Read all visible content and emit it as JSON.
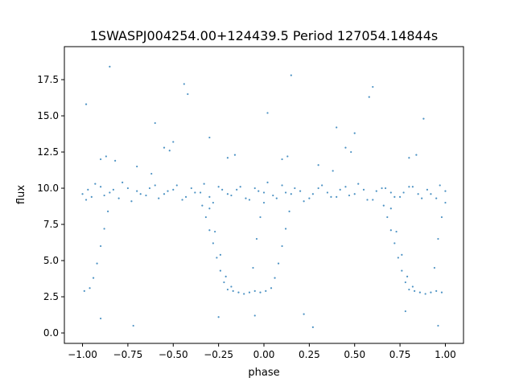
{
  "chart_data": {
    "type": "scatter",
    "title": "1SWASPJ004254.00+124439.5 Period 127054.14844s",
    "xlabel": "phase",
    "ylabel": "flux",
    "xlim": [
      -1.1,
      1.1
    ],
    "ylim": [
      -0.72,
      19.78
    ],
    "xticks": [
      -1.0,
      -0.75,
      -0.5,
      -0.25,
      0.0,
      0.25,
      0.5,
      0.75,
      1.0
    ],
    "xtick_labels": [
      "−1.00",
      "−0.75",
      "−0.50",
      "−0.25",
      "0.00",
      "0.25",
      "0.50",
      "0.75",
      "1.00"
    ],
    "yticks": [
      0.0,
      2.5,
      5.0,
      7.5,
      10.0,
      12.5,
      15.0,
      17.5
    ],
    "ytick_labels": [
      "0.0",
      "2.5",
      "5.0",
      "7.5",
      "10.0",
      "12.5",
      "15.0",
      "17.5"
    ],
    "grid": false,
    "marker_color": "#1f77b4",
    "series": [
      {
        "x": [
          -1.0,
          -0.97,
          -0.95,
          -0.9,
          -0.85,
          -0.8,
          -0.75,
          -0.7,
          -0.65,
          -0.6,
          -0.55,
          -0.5,
          -0.45,
          -0.4,
          -0.35,
          -0.3,
          -0.25,
          -0.2,
          -0.15,
          -0.1,
          -0.05,
          0.0,
          0.05,
          0.1,
          0.15,
          0.2,
          0.25,
          0.3,
          0.35,
          0.4,
          0.45,
          0.5,
          0.55,
          0.6,
          0.65,
          0.7,
          0.75,
          0.8,
          0.85,
          0.9,
          0.95,
          1.0,
          -0.98,
          -0.93,
          -0.88,
          -0.83,
          -0.78,
          -0.73,
          -0.68,
          -0.63,
          -0.58,
          -0.53,
          -0.48,
          -0.43,
          -0.38,
          -0.33,
          -0.28,
          -0.23,
          -0.18,
          -0.13,
          -0.08,
          -0.03,
          0.02,
          0.07,
          0.12,
          0.17,
          0.22,
          0.27,
          0.32,
          0.37,
          0.42,
          0.47,
          0.52,
          0.57,
          0.62,
          0.67,
          0.72,
          0.77,
          0.82,
          0.87,
          0.92,
          0.97,
          -0.34,
          -0.32,
          -0.3,
          -0.28,
          -0.26,
          -0.24,
          -0.22,
          -0.2,
          -0.17,
          -0.14,
          -0.11,
          -0.08,
          -0.05,
          -0.02,
          0.01,
          0.04,
          0.06,
          0.08,
          0.1,
          0.12,
          0.14,
          -0.3,
          -0.27,
          -0.24,
          -0.21,
          -0.18,
          -0.06,
          -0.04,
          -0.02,
          0.0,
          0.66,
          0.68,
          0.7,
          0.72,
          0.74,
          0.76,
          0.78,
          0.8,
          0.83,
          0.86,
          0.89,
          0.92,
          0.95,
          0.98,
          -0.99,
          -0.96,
          -0.94,
          -0.92,
          -0.9,
          -0.88,
          -0.86,
          0.7,
          0.73,
          0.76,
          0.79,
          0.82,
          0.94,
          0.96,
          0.98,
          1.0,
          -0.9,
          -0.87,
          -0.82,
          -0.2,
          -0.16,
          0.1,
          0.13,
          0.8,
          0.84,
          -0.55,
          -0.52,
          0.45,
          0.48,
          -0.7,
          -0.62,
          0.3,
          0.38,
          -0.42,
          -0.44,
          0.58,
          0.6,
          -0.85,
          0.15,
          -0.6,
          0.4,
          -0.98,
          0.02,
          0.88,
          -0.3,
          -0.5,
          0.5,
          -0.72,
          0.27,
          0.96,
          -0.05,
          -0.9,
          0.78,
          -0.25,
          0.22
        ],
        "y": [
          9.6,
          9.9,
          9.4,
          10.1,
          9.7,
          9.3,
          10.0,
          9.8,
          9.5,
          10.2,
          9.6,
          9.9,
          9.2,
          10.0,
          9.7,
          9.4,
          10.1,
          9.6,
          9.9,
          9.3,
          10.0,
          9.7,
          9.5,
          10.2,
          9.6,
          9.8,
          9.3,
          10.0,
          9.7,
          9.4,
          10.1,
          9.6,
          9.9,
          9.2,
          10.0,
          9.7,
          9.4,
          10.1,
          9.6,
          9.9,
          9.3,
          9.8,
          9.2,
          10.3,
          9.5,
          9.9,
          10.4,
          9.1,
          9.6,
          10.0,
          9.3,
          9.8,
          10.2,
          9.4,
          9.7,
          10.3,
          9.0,
          9.9,
          9.5,
          10.1,
          9.2,
          9.8,
          10.4,
          9.3,
          9.7,
          10.0,
          9.1,
          9.6,
          10.2,
          9.4,
          9.9,
          9.5,
          10.3,
          9.2,
          9.8,
          10.0,
          9.4,
          9.7,
          10.1,
          9.3,
          9.6,
          10.2,
          8.8,
          8.0,
          7.1,
          6.2,
          5.2,
          4.3,
          3.5,
          3.0,
          2.9,
          2.8,
          2.7,
          2.8,
          2.9,
          2.8,
          2.9,
          3.1,
          3.8,
          4.8,
          6.0,
          7.2,
          8.4,
          8.6,
          7.0,
          5.4,
          3.9,
          3.2,
          4.5,
          6.5,
          8.0,
          9.0,
          8.8,
          8.0,
          7.1,
          6.2,
          5.2,
          4.3,
          3.5,
          3.0,
          2.9,
          2.8,
          2.7,
          2.8,
          2.9,
          2.8,
          2.9,
          3.1,
          3.8,
          4.8,
          6.0,
          7.2,
          8.4,
          8.6,
          7.0,
          5.4,
          3.9,
          3.2,
          4.5,
          6.5,
          8.0,
          9.0,
          12.0,
          12.2,
          11.9,
          12.1,
          12.3,
          12.0,
          12.2,
          12.1,
          12.3,
          12.8,
          12.6,
          12.8,
          12.5,
          11.5,
          11.0,
          11.6,
          11.2,
          16.5,
          17.2,
          16.3,
          17.0,
          18.4,
          17.8,
          14.5,
          14.2,
          15.8,
          15.2,
          14.8,
          13.5,
          13.2,
          13.8,
          0.5,
          0.4,
          0.5,
          1.2,
          1.0,
          1.5,
          1.1,
          1.3
        ]
      }
    ]
  }
}
